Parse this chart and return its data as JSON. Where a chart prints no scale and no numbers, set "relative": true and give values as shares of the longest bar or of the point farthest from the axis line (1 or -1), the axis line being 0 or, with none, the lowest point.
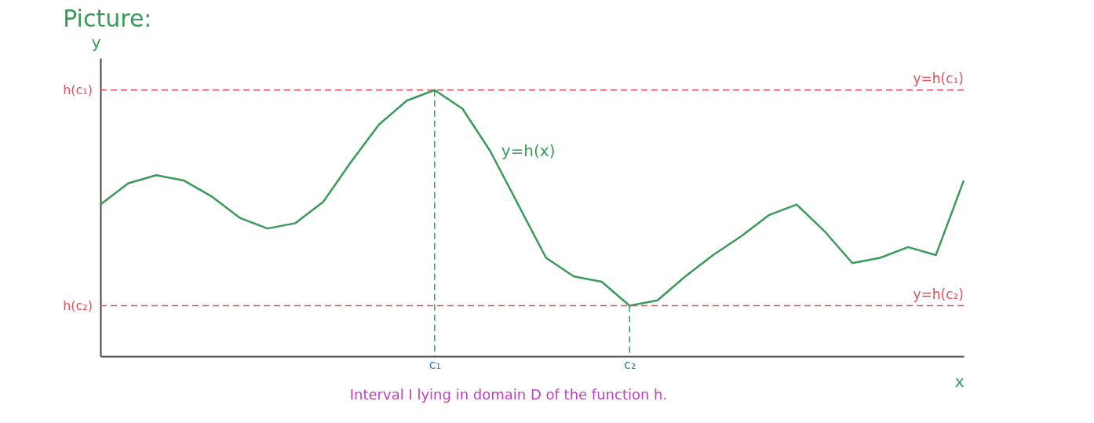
{
  "chart_data": {
    "type": "line",
    "title": "Picture:",
    "xlabel": "x",
    "ylabel": "y",
    "relative": true,
    "categories": [
      null,
      null,
      null,
      null,
      null,
      null,
      null,
      null,
      null,
      null,
      null,
      null,
      "c₁",
      null,
      null,
      null,
      null,
      null,
      null,
      "c₂",
      null,
      null,
      null,
      null,
      null,
      null,
      null,
      null,
      null,
      null,
      null,
      null
    ],
    "series": [
      {
        "name": "y=h(x)",
        "color": "#3a9a5a",
        "values": [
          0.57,
          0.65,
          0.68,
          0.66,
          0.6,
          0.52,
          0.48,
          0.5,
          0.58,
          0.73,
          0.87,
          0.96,
          1.0,
          0.93,
          0.77,
          0.57,
          0.37,
          0.3,
          0.28,
          0.19,
          0.21,
          0.3,
          0.38,
          0.45,
          0.53,
          0.57,
          0.47,
          0.35,
          0.37,
          0.41,
          0.38,
          0.66
        ]
      }
    ],
    "ref_lines": [
      {
        "axis": "y",
        "value": 1.0,
        "label": "y=h(c₁)",
        "color": "#e0505a",
        "line_style": "dashed"
      },
      {
        "axis": "y",
        "value": 0.19,
        "label": "y=h(c₂)",
        "color": "#e0505a",
        "line_style": "dashed"
      },
      {
        "axis": "x",
        "value": "c₁",
        "color": "#3a9a5a",
        "line_style": "dashed"
      },
      {
        "axis": "x",
        "value": "c₂",
        "color": "#3a9a5a",
        "line_style": "dashed"
      }
    ],
    "annotations": [
      "h(c₁)",
      "h(c₂)",
      "Interval I lying in domain D of the function h."
    ],
    "marker": "none",
    "line_style": "solid",
    "grid": false
  }
}
